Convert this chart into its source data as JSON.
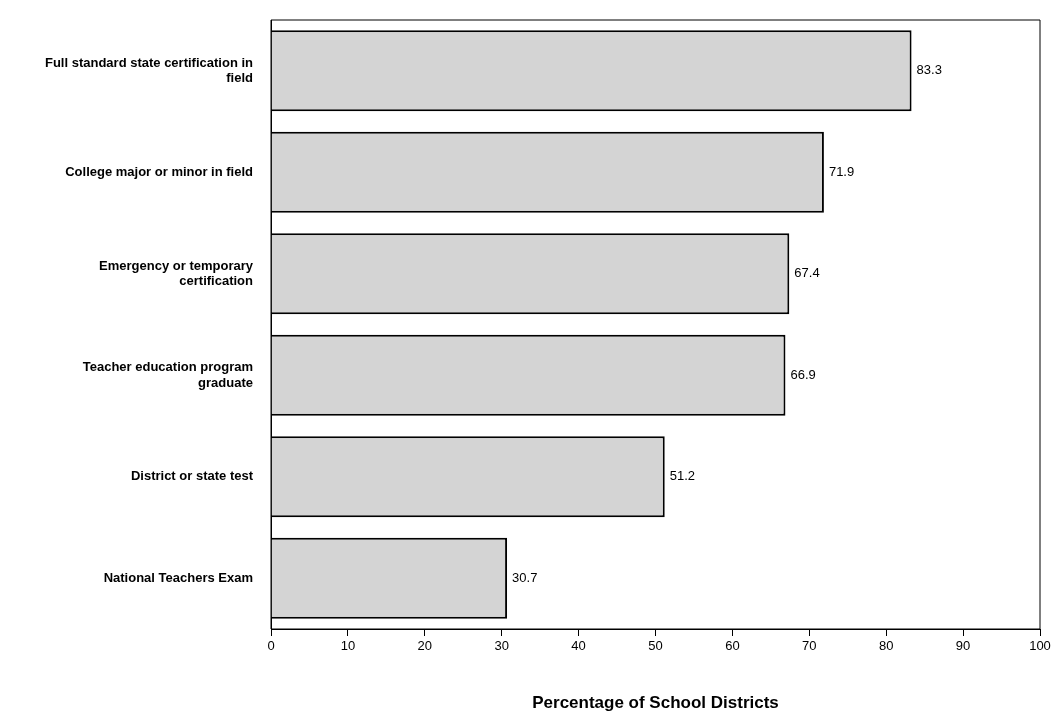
{
  "chart_data": {
    "type": "bar",
    "orientation": "horizontal",
    "xlabel": "Percentage of School Districts",
    "categories": [
      "Full standard state certification in field",
      "College major or minor in field",
      "Emergency or temporary certification",
      "Teacher education program graduate",
      "District or state test",
      "National Teachers Exam"
    ],
    "values": [
      83.3,
      71.9,
      67.4,
      66.9,
      51.2,
      30.7
    ],
    "color": "#d4d4d4",
    "data_labels": true,
    "xlim": [
      0,
      100
    ],
    "xticks": [
      0,
      10,
      20,
      30,
      40,
      50,
      60,
      70,
      80,
      90,
      100
    ],
    "grid": false,
    "legend": false
  }
}
